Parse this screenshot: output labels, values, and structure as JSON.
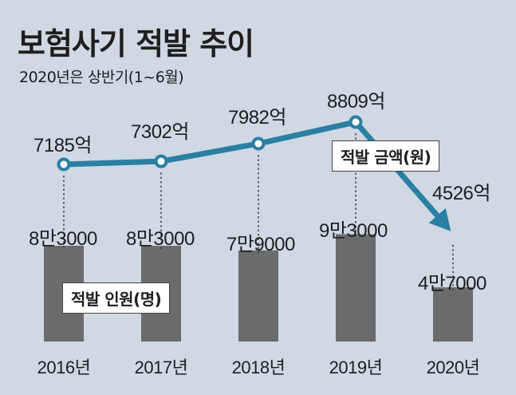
{
  "title": "보험사기 적발 추이",
  "subtitle": "2020년은 상반기(1~6월)",
  "chart_data": {
    "type": "bar+line",
    "categories": [
      "2016년",
      "2017년",
      "2018년",
      "2019년",
      "2020년"
    ],
    "series": [
      {
        "name": "적발 금액(원)",
        "type": "line",
        "values": [
          7185,
          7302,
          7982,
          8809,
          4526
        ],
        "labels": [
          "7185억",
          "7302억",
          "7982억",
          "8809억",
          "4526억"
        ],
        "color": "#2a7fa3"
      },
      {
        "name": "적발 인원(명)",
        "type": "bar",
        "values": [
          83000,
          83000,
          79000,
          93000,
          47000
        ],
        "labels": [
          "8만3000",
          "8만3000",
          "7만9000",
          "9만3000",
          "4만7000"
        ],
        "color": "#6a6b6d"
      }
    ]
  }
}
